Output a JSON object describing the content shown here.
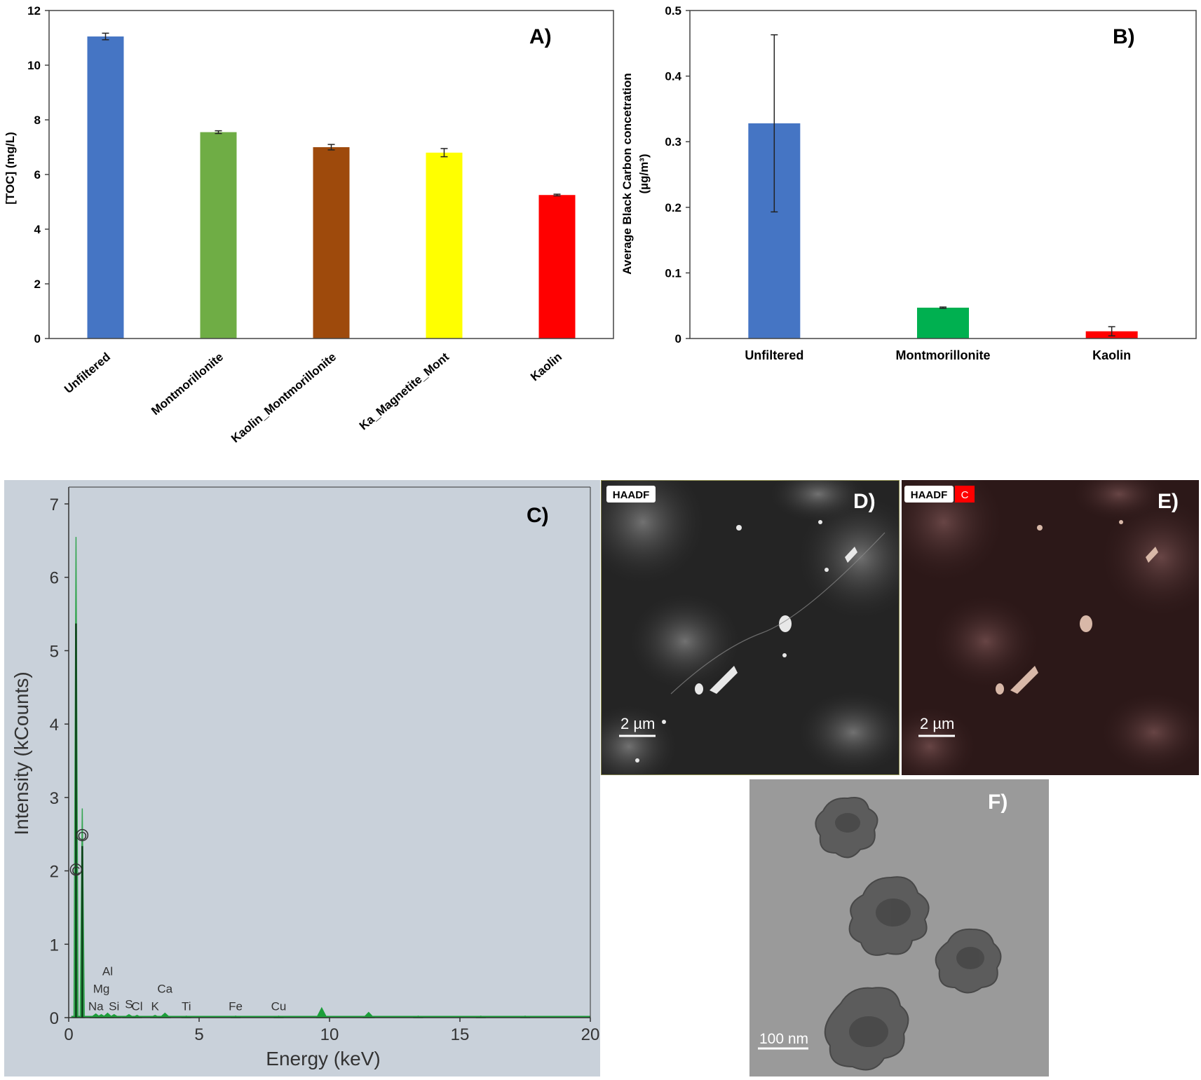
{
  "chart_data": [
    {
      "panel": "A)",
      "type": "bar",
      "categories": [
        "Unfiltered",
        "Montmorillonite",
        "Kaolin_Montmorillonite",
        "Ka_Magnetite_Mont",
        "Kaolin"
      ],
      "values": [
        11.05,
        7.55,
        7.0,
        6.8,
        5.25
      ],
      "errors": [
        0.12,
        0.05,
        0.1,
        0.15,
        0.03
      ],
      "colors": [
        "#4575c4",
        "#6fad45",
        "#9e4a0c",
        "#ffff00",
        "#ff0000"
      ],
      "ylabel": "[TOC] (mg/L)",
      "ylim": [
        0,
        12
      ],
      "yticks": [
        "0",
        "2",
        "4",
        "6",
        "8",
        "10",
        "12"
      ],
      "grid": false
    },
    {
      "panel": "B)",
      "type": "bar",
      "categories": [
        "Unfiltered",
        "Montmorillonite",
        "Kaolin"
      ],
      "values": [
        0.328,
        0.047,
        0.011
      ],
      "errors": [
        0.135,
        0.001,
        0.007
      ],
      "colors": [
        "#4575c4",
        "#00b050",
        "#ff0000"
      ],
      "ylabel_line1": "Average Black Carbon  concetration",
      "ylabel_line2": "(µg/m³)",
      "ylim": [
        0,
        0.5
      ],
      "yticks": [
        "0",
        "0.1",
        "0.2",
        "0.3",
        "0.4",
        "0.5"
      ],
      "grid": false
    },
    {
      "panel": "C)",
      "type": "line",
      "xlabel": "Energy (keV)",
      "ylabel": "Intensity (kCounts)",
      "xlim": [
        0,
        20
      ],
      "ylim": [
        0,
        7
      ],
      "xticks": [
        "0",
        "5",
        "10",
        "15",
        "20"
      ],
      "yticks": [
        "0",
        "1",
        "2",
        "3",
        "4",
        "5",
        "6",
        "7"
      ],
      "line_color": "#1c9e3a",
      "background": "#c9d1da",
      "peaks": [
        {
          "x": 0.28,
          "y": 6.55
        },
        {
          "x": 0.52,
          "y": 2.85
        },
        {
          "x": 1.04,
          "y": 0.05
        },
        {
          "x": 1.25,
          "y": 0.04
        },
        {
          "x": 1.49,
          "y": 0.06
        },
        {
          "x": 1.74,
          "y": 0.04
        },
        {
          "x": 2.31,
          "y": 0.04
        },
        {
          "x": 2.62,
          "y": 0.03
        },
        {
          "x": 3.31,
          "y": 0.03
        },
        {
          "x": 3.69,
          "y": 0.06
        },
        {
          "x": 4.51,
          "y": 0.02
        },
        {
          "x": 6.4,
          "y": 0.02
        },
        {
          "x": 8.05,
          "y": 0.02
        },
        {
          "x": 9.7,
          "y": 0.13
        },
        {
          "x": 11.5,
          "y": 0.07
        },
        {
          "x": 13.4,
          "y": 0.02
        },
        {
          "x": 15.8,
          "y": 0.02
        },
        {
          "x": 17.5,
          "y": 0.02
        }
      ],
      "element_labels": [
        {
          "text": "C",
          "x": 0.28,
          "y": 1.95
        },
        {
          "text": "O",
          "x": 0.52,
          "y": 2.42
        },
        {
          "text": "Al",
          "x": 1.49,
          "y": 0.58
        },
        {
          "text": "Mg",
          "x": 1.25,
          "y": 0.34
        },
        {
          "text": "Ca",
          "x": 3.69,
          "y": 0.34
        },
        {
          "text": "Na",
          "x": 1.04,
          "y": 0.1
        },
        {
          "text": "Si",
          "x": 1.74,
          "y": 0.1
        },
        {
          "text": "S",
          "x": 2.31,
          "y": 0.13
        },
        {
          "text": "Cl",
          "x": 2.62,
          "y": 0.1
        },
        {
          "text": "K",
          "x": 3.31,
          "y": 0.1
        },
        {
          "text": "Ti",
          "x": 4.51,
          "y": 0.1
        },
        {
          "text": "Fe",
          "x": 6.4,
          "y": 0.1
        },
        {
          "text": "Cu",
          "x": 8.05,
          "y": 0.1
        }
      ]
    }
  ],
  "panels": {
    "A": {
      "label": "A)"
    },
    "B": {
      "label": "B)"
    },
    "C": {
      "label": "C)"
    },
    "D": {
      "label": "D)",
      "badge": "HAADF",
      "scale_bar": "2 µm"
    },
    "E": {
      "label": "E)",
      "badge": "HAADF",
      "badge_element": "C",
      "scale_bar": "2 µm"
    },
    "F": {
      "label": "F)",
      "scale_bar": "100 nm"
    }
  }
}
